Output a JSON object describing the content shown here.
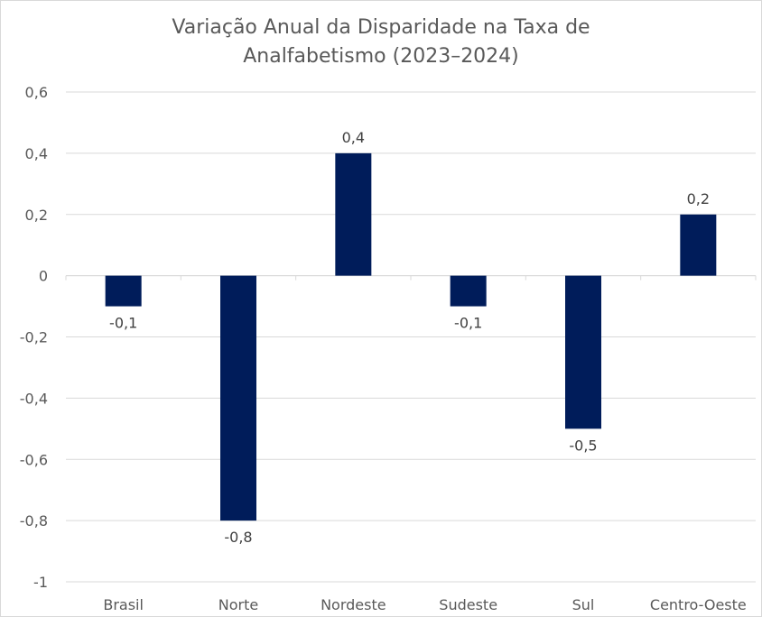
{
  "chart_data": {
    "type": "bar",
    "title_lines": [
      "Variação Anual da Disparidade na Taxa de",
      "Analfabetismo (2023–2024)"
    ],
    "categories": [
      "Brasil",
      "Norte",
      "Nordeste",
      "Sudeste",
      "Sul",
      "Centro-Oeste"
    ],
    "values": [
      -0.1,
      -0.8,
      0.4,
      -0.1,
      -0.5,
      0.2
    ],
    "value_labels": [
      "-0,1",
      "-0,8",
      "0,4",
      "-0,1",
      "-0,5",
      "0,2"
    ],
    "ylim": [
      -1,
      0.6
    ],
    "yticks": [
      0.6,
      0.4,
      0.2,
      0,
      -0.2,
      -0.4,
      -0.6,
      -0.8,
      -1
    ],
    "ytick_labels": [
      "0,6",
      "0,4",
      "0,2",
      "0",
      "-0,2",
      "-0,4",
      "-0,6",
      "-0,8",
      "-1"
    ],
    "grid": true,
    "legend": false,
    "bar_color": "#001c5a",
    "grid_color": "#d9d9d9"
  }
}
